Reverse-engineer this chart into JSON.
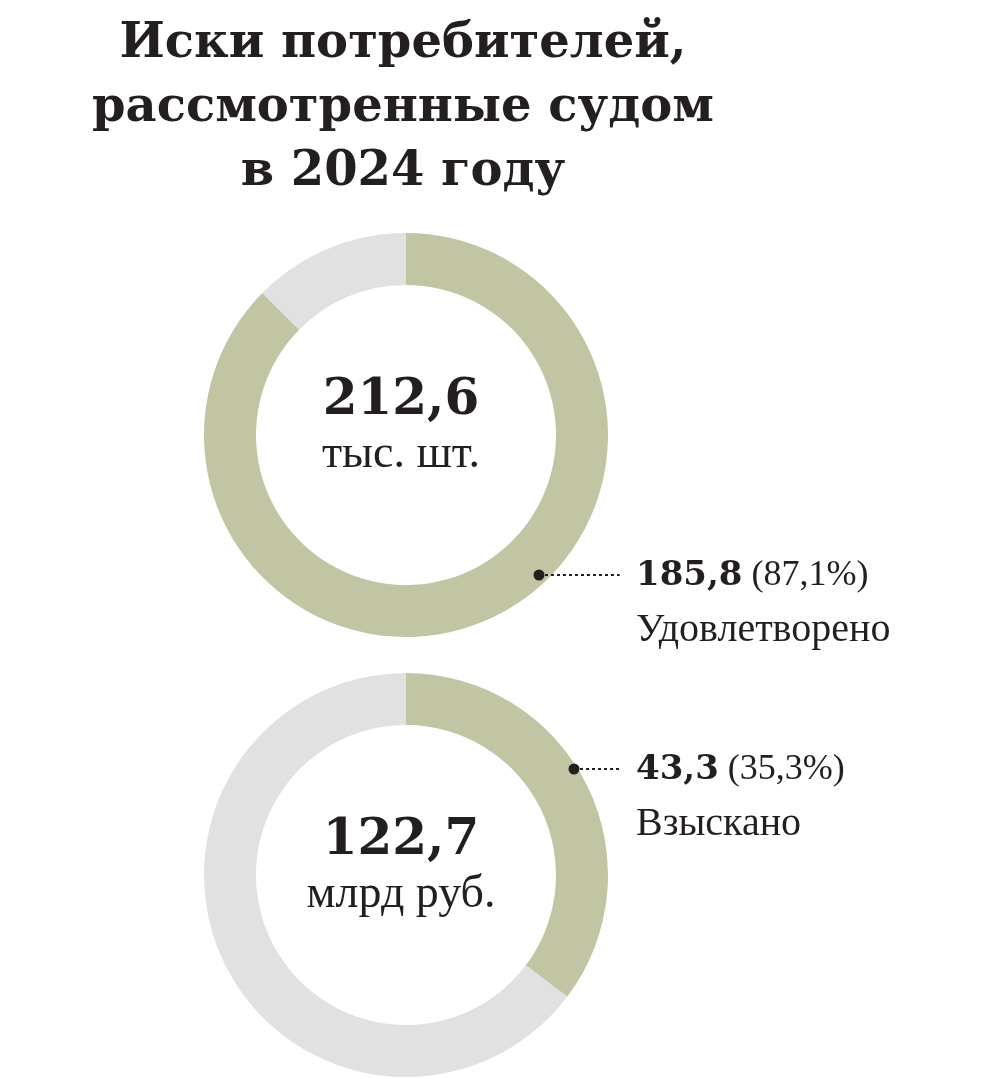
{
  "chart_data": [
    {
      "type": "donut",
      "title": "Иски потребителей,\nрассмотренные судом\nв 2024 году",
      "categories": [
        "Удовлетворено",
        null
      ],
      "values": [
        185.8,
        26.8
      ],
      "colors": [
        "#c2c5a3",
        "#e1e1e1"
      ],
      "value_labels": [
        "185,8 (87,1%)",
        null
      ],
      "annotations": [
        "212,6",
        "тыс. шт."
      ]
    },
    {
      "type": "donut",
      "categories": [
        "Взыскано",
        null
      ],
      "values": [
        43.3,
        79.4
      ],
      "colors": [
        "#c2c5a3",
        "#e1e1e1"
      ],
      "value_labels": [
        "43,3 (35,3%)",
        null
      ],
      "annotations": [
        "122,7",
        "млрд руб."
      ]
    }
  ]
}
